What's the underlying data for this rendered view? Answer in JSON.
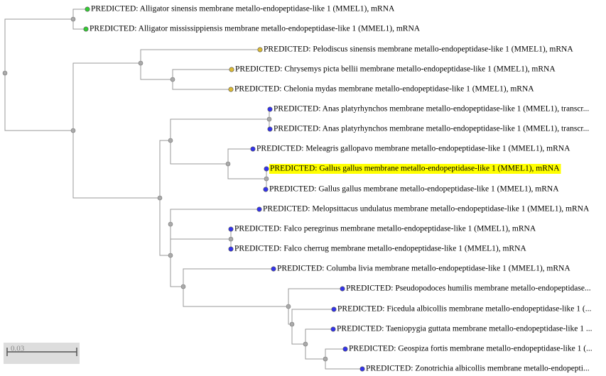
{
  "leaves": [
    "PREDICTED: Alligator sinensis membrane metallo-endopeptidase-like 1 (MMEL1), mRNA",
    "PREDICTED: Alligator mississippiensis membrane metallo-endopeptidase-like 1 (MMEL1), mRNA",
    "PREDICTED: Pelodiscus sinensis membrane metallo-endopeptidase-like 1 (MMEL1), mRNA",
    "PREDICTED: Chrysemys picta bellii membrane metallo-endopeptidase-like 1 (MMEL1), mRNA",
    "PREDICTED: Chelonia mydas membrane metallo-endopeptidase-like 1 (MMEL1), mRNA",
    "PREDICTED: Anas platyrhynchos membrane metallo-endopeptidase-like 1 (MMEL1), transcr...",
    "PREDICTED: Anas platyrhynchos membrane metallo-endopeptidase-like 1 (MMEL1), transcr...",
    "PREDICTED: Meleagris gallopavo membrane metallo-endopeptidase-like 1 (MMEL1), mRNA",
    "PREDICTED: Gallus gallus membrane metallo-endopeptidase-like 1 (MMEL1), mRNA",
    "PREDICTED: Gallus gallus membrane metallo-endopeptidase-like 1 (MMEL1), mRNA",
    "PREDICTED: Melopsittacus undulatus membrane metallo-endopeptidase-like 1 (MMEL1), mRNA",
    "PREDICTED: Falco peregrinus membrane metallo-endopeptidase-like 1 (MMEL1), mRNA",
    "PREDICTED: Falco cherrug membrane metallo-endopeptidase-like 1 (MMEL1), mRNA",
    "PREDICTED: Columba livia membrane metallo-endopeptidase-like 1 (MMEL1), mRNA",
    "PREDICTED: Pseudopodoces humilis membrane metallo-endopeptidase...",
    "PREDICTED: Ficedula albicollis membrane metallo-endopeptidase-like 1 (...",
    "PREDICTED: Taeniopygia guttata membrane metallo-endopeptidase-like 1 ...",
    "PREDICTED: Geospiza fortis membrane metallo-endopeptidase-like 1 (...",
    "PREDICTED: Zonotrichia albicollis membrane metallo-endopepti..."
  ],
  "scale_bar": "0.03"
}
